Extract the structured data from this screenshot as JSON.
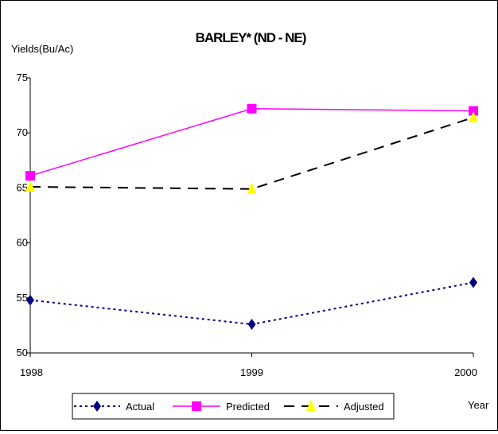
{
  "chart_data": {
    "type": "line",
    "title": "BARLEY* (ND - NE)",
    "ylabel": "Yields(Bu/Ac)",
    "xlabel": "Year",
    "x": [
      "1998",
      "1999",
      "2000"
    ],
    "ylim": [
      50,
      75
    ],
    "yticks": [
      50,
      55,
      60,
      65,
      70,
      75
    ],
    "grid": false,
    "legend": "bottom",
    "series": [
      {
        "name": "Actual",
        "values": [
          54.8,
          52.6,
          56.4
        ],
        "color": "#000080",
        "marker": "diamond",
        "line": "dotted"
      },
      {
        "name": "Predicted",
        "values": [
          66.1,
          72.2,
          72.0
        ],
        "color": "#ff00ff",
        "marker": "square",
        "line": "solid"
      },
      {
        "name": "Adjusted",
        "values": [
          65.1,
          64.9,
          71.4
        ],
        "color": "#000000",
        "marker": "triangle",
        "line": "dashed",
        "marker_color": "#ffff00"
      }
    ]
  }
}
